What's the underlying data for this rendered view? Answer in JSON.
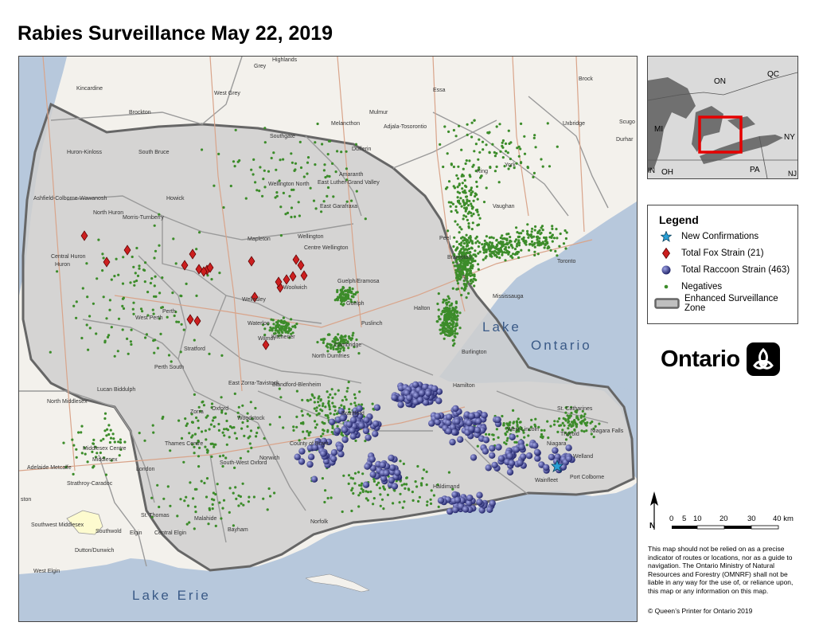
{
  "title": "Rabies Surveillance May 22, 2019",
  "legend": {
    "title": "Legend",
    "items": [
      {
        "label": "New Confirmations",
        "symbol": "star",
        "color": "#2a9fd6"
      },
      {
        "label": "Total Fox Strain (21)",
        "symbol": "diamond",
        "color": "#cc1f1f"
      },
      {
        "label": "Total Raccoon Strain (463)",
        "symbol": "sphere",
        "color": "#3b3f99"
      },
      {
        "label": "Negatives",
        "symbol": "dot",
        "color": "#3c8c2a"
      },
      {
        "label": "Enhanced Surveillance Zone",
        "symbol": "zone",
        "color": "#bfbfbf"
      }
    ]
  },
  "inset": {
    "labels": [
      "ON",
      "QC",
      "MI",
      "NY",
      "PA",
      "OH",
      "IN",
      "NJ"
    ],
    "highlight_color": "#e60000"
  },
  "lakes": {
    "ontario_line1": "Lake",
    "ontario_line2": "Ontario",
    "erie": "Lake Erie"
  },
  "places": {
    "grey": "Grey",
    "highlands": "Highlands",
    "kincardine": "Kincardine",
    "west_grey": "West Grey",
    "brockton": "Brockton",
    "essa": "Essa",
    "mulmur": "Mulmur",
    "melancthon": "Melancthon",
    "adjala": "Adjala-Tosorontio",
    "southgate": "Southgate",
    "huron_kinloss": "Huron-Kinloss",
    "south_bruce": "South Bruce",
    "dufferin": "Dufferin",
    "amaranth": "Amaranth",
    "east_luther": "East Luther Grand Valley",
    "east_garafraxa": "East Garafraxa",
    "wellington_north": "Wellington North",
    "ashfield": "Ashfield-Colborne-Wawanosh",
    "howick": "Howick",
    "north_huron": "North Huron",
    "morris": "Morris-Turnberry",
    "mapleton": "Mapleton",
    "wellington": "Wellington",
    "centre_wellington": "Centre Wellington",
    "central_huron": "Central Huron",
    "huron": "Huron",
    "guelph_eramosa": "Guelph/Eramosa",
    "guelph": "Guelph",
    "woolwich": "Woolwich",
    "wellesley": "Wellesley",
    "perth": "Perth",
    "west_perth": "West Perth",
    "waterloo": "Waterloo",
    "kitchener": "Kitchener",
    "wilmot": "Wilmot",
    "puslinch": "Puslinch",
    "cambridge": "Cambridge",
    "north_dumfries": "North Dumfries",
    "stratford": "Stratford",
    "perth_south": "Perth South",
    "east_zorra": "East Zorra-Tavistock",
    "blandford": "Blandford-Blenheim",
    "lucan": "Lucan Biddulph",
    "zorra": "Zorra",
    "oxford": "Oxford",
    "woodstock": "Woodstock",
    "brantford": "Brantford",
    "county_brant": "County of Brant",
    "north_middlesex": "North Middlesex",
    "thames_centre": "Thames Centre",
    "middlesex_centre": "Middlesex Centre",
    "middlesex": "Middlesex",
    "adelaide": "Adelaide Metcalfe",
    "london": "London",
    "south_west_oxford": "South-West Oxford",
    "norwich": "Norwich",
    "strathroy": "Strathroy-Caradoc",
    "ston": "ston",
    "st_thomas": "St. Thomas",
    "southwest_middlesex": "Southwest Middlesex",
    "southwold": "Southwold",
    "central_elgin": "Central Elgin",
    "elgin": "Elgin",
    "malahide": "Malahide",
    "bayham": "Bayham",
    "norfolk": "Norfolk",
    "dutton": "Dutton/Dunwich",
    "west_elgin": "West Elgin",
    "haldimand": "Haldimand",
    "hamilton": "Hamilton",
    "burlington": "Burlington",
    "halton": "Halton",
    "mississauga": "Mississauga",
    "brampton": "Brampton",
    "peel": "Peel",
    "toronto": "Toronto",
    "vaughan": "Vaughan",
    "york": "York",
    "king": "King",
    "uxbridge": "Uxbridge",
    "brock": "Brock",
    "scugog": "Scugo",
    "durham": "Durhar",
    "st_catharines": "St. Catharines",
    "thorold": "Thorold",
    "niagara": "Niagara",
    "niagara_falls": "Niagara Falls",
    "welland": "Welland",
    "port_colborne": "Port Colborne",
    "wainfleet": "Wainfleet",
    "west_lincoln": "West Lincoln"
  },
  "ontario_logo_text": "Ontario",
  "north_label": "N",
  "scale": {
    "ticks": [
      "0",
      "5",
      "10",
      "20",
      "30",
      "40 km"
    ]
  },
  "disclaimer": "This map should not be relied on as a precise indicator of routes or locations, nor as a guide to navigation. The Ontario Ministry of Natural Resources and Forestry (OMNRF) shall not be liable in any way for the use of, or reliance upon, this map or any information on this map.",
  "copyright": "© Queen’s Printer for Ontario 2019",
  "colors": {
    "water": "#b7c8dc",
    "land": "#f3f1ec",
    "zone_fill": "#d2d2d2",
    "zone_outline": "#666666",
    "county_line": "#9a9a9a",
    "road": "#d9a48a",
    "negative": "#3c8c2a",
    "raccoon": "#3b3f99",
    "fox": "#cc1f1f",
    "new_confirmation": "#2a9fd6"
  }
}
